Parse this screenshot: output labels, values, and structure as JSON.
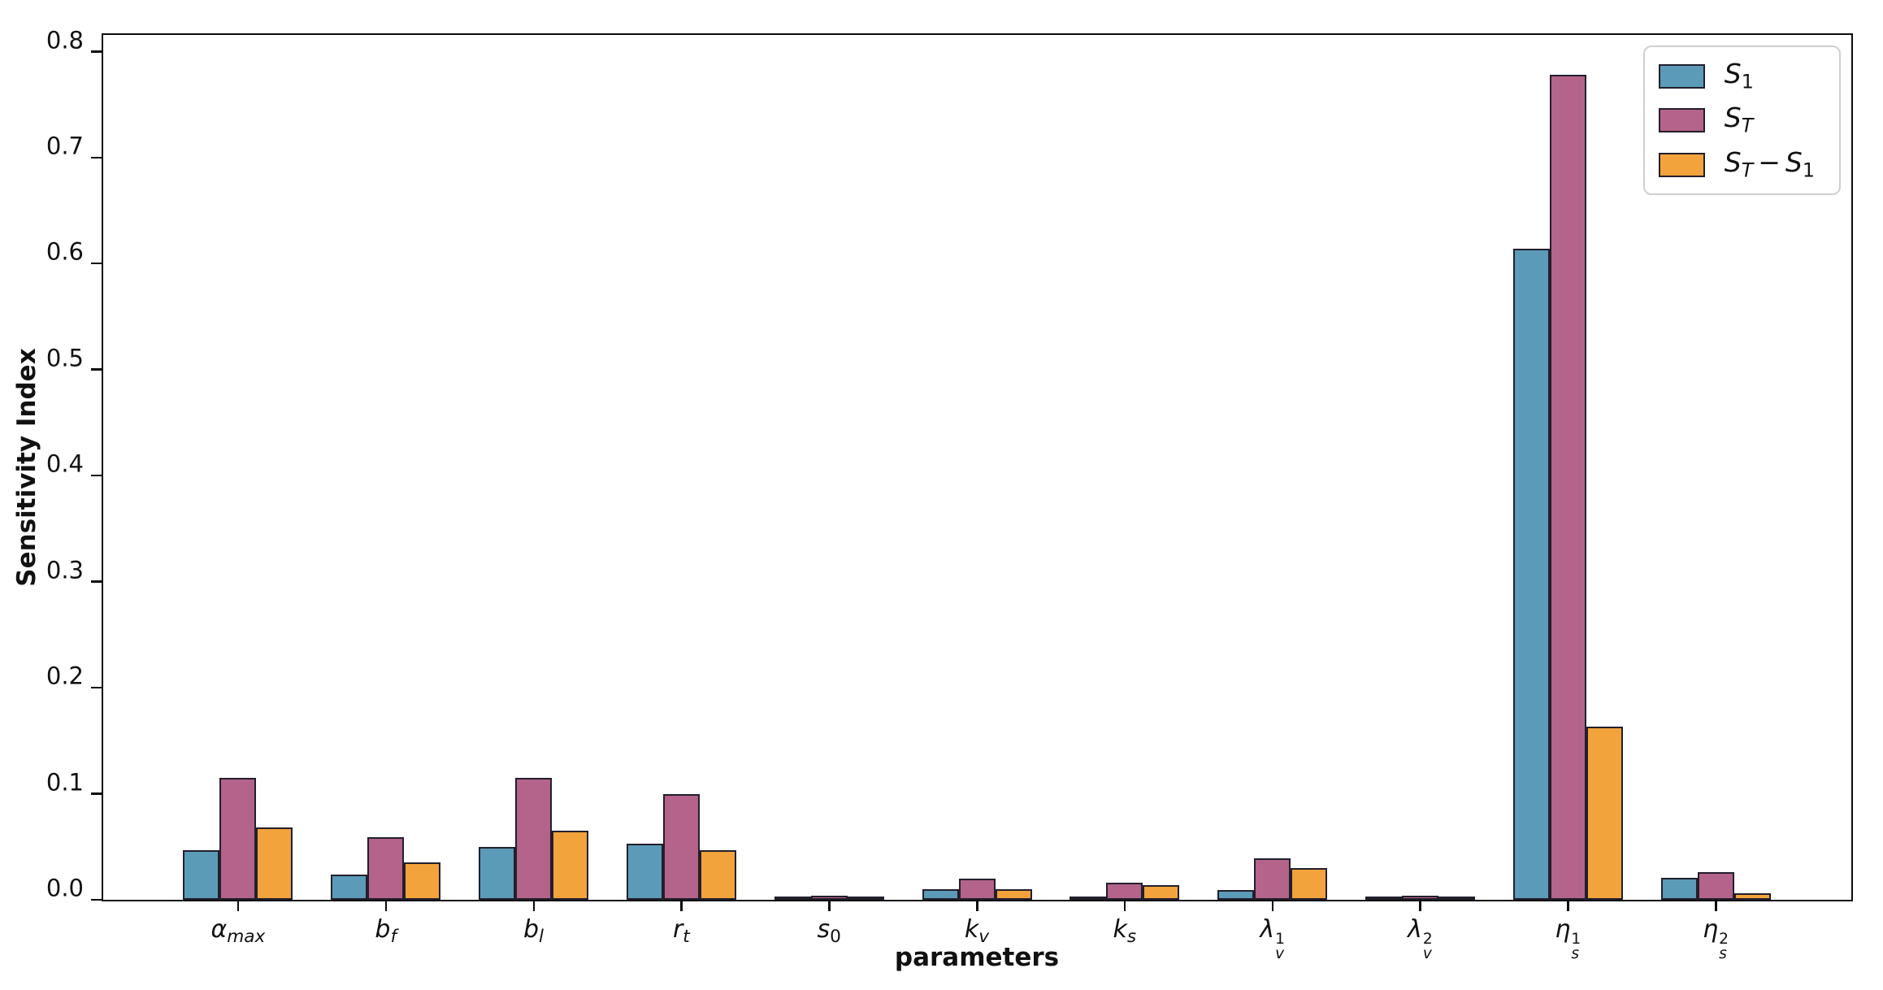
{
  "chart_data": {
    "type": "bar",
    "title": "",
    "xlabel": "parameters",
    "ylabel": "Sensitivity Index",
    "ylim": [
      0,
      0.815
    ],
    "grid": false,
    "legend_position": "upper right",
    "bar_edge_color": "#221f2b",
    "yticks": [
      {
        "value": 0.0,
        "label": "0.0"
      },
      {
        "value": 0.1,
        "label": "0.1"
      },
      {
        "value": 0.2,
        "label": "0.2"
      },
      {
        "value": 0.3,
        "label": "0.3"
      },
      {
        "value": 0.4,
        "label": "0.4"
      },
      {
        "value": 0.5,
        "label": "0.5"
      },
      {
        "value": 0.6,
        "label": "0.6"
      },
      {
        "value": 0.7,
        "label": "0.7"
      },
      {
        "value": 0.8,
        "label": "0.8"
      }
    ],
    "categories": [
      {
        "base": "α",
        "sub": "max",
        "sup": null,
        "plain": "alpha_max"
      },
      {
        "base": "b",
        "sub": "f",
        "sup": null,
        "plain": "b_f"
      },
      {
        "base": "b",
        "sub": "l",
        "sup": null,
        "plain": "b_l"
      },
      {
        "base": "r",
        "sub": "t",
        "sup": null,
        "plain": "r_t"
      },
      {
        "base": "s",
        "sub": "0",
        "sup": null,
        "plain": "s_0"
      },
      {
        "base": "k",
        "sub": "v",
        "sup": null,
        "plain": "k_v"
      },
      {
        "base": "k",
        "sub": "s",
        "sup": null,
        "plain": "k_s"
      },
      {
        "base": "λ",
        "sub": "v",
        "sup": "1",
        "plain": "lambda_v^1"
      },
      {
        "base": "λ",
        "sub": "v",
        "sup": "2",
        "plain": "lambda_v^2"
      },
      {
        "base": "η",
        "sub": "s",
        "sup": "1",
        "plain": "eta_s^1"
      },
      {
        "base": "η",
        "sub": "s",
        "sup": "2",
        "plain": "eta_s^2"
      }
    ],
    "series": [
      {
        "name": "S_1",
        "color": "#5B9BB8",
        "label_tokens": [
          {
            "t": "S",
            "k": "i"
          },
          {
            "t": "1",
            "k": "sub"
          }
        ],
        "values": [
          0.047,
          0.024,
          0.05,
          0.053,
          0.002,
          0.01,
          0.003,
          0.009,
          0.002,
          0.614,
          0.021
        ]
      },
      {
        "name": "S_T",
        "color": "#B4638A",
        "label_tokens": [
          {
            "t": "S",
            "k": "i"
          },
          {
            "t": "T",
            "k": "subi"
          }
        ],
        "values": [
          0.115,
          0.059,
          0.115,
          0.1,
          0.004,
          0.02,
          0.016,
          0.039,
          0.004,
          0.778,
          0.026
        ]
      },
      {
        "name": "S_T - S_1",
        "color": "#F2A33C",
        "label_tokens": [
          {
            "t": "S",
            "k": "i"
          },
          {
            "t": "T",
            "k": "subi"
          },
          {
            "t": "−",
            "k": "op"
          },
          {
            "t": "S",
            "k": "i"
          },
          {
            "t": "1",
            "k": "sub"
          }
        ],
        "values": [
          0.068,
          0.035,
          0.065,
          0.047,
          0.003,
          0.01,
          0.014,
          0.03,
          0.002,
          0.163,
          0.006
        ]
      }
    ]
  },
  "layout_colors": {
    "background": "#ffffff",
    "spine": "#0b0b0b",
    "legend_border": "#cfcfcf",
    "text": "#111111"
  }
}
